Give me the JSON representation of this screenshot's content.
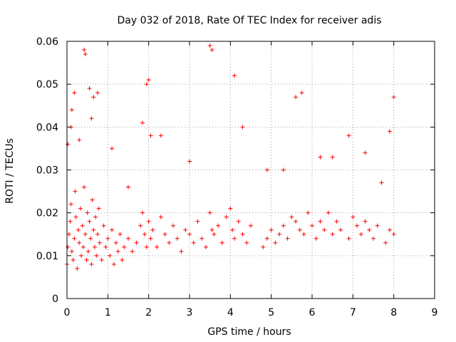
{
  "chart_data": {
    "type": "scatter",
    "title": "Day 032 of 2018, Rate Of TEC Index for receiver adis",
    "xlabel": "GPS time / hours",
    "ylabel": "ROTI / TECUs",
    "xlim": [
      0,
      9
    ],
    "ylim": [
      0,
      0.06
    ],
    "x_ticks": [
      "0",
      "1",
      "2",
      "3",
      "4",
      "5",
      "6",
      "7",
      "8",
      "9"
    ],
    "y_ticks": [
      "0",
      "0.01",
      "0.02",
      "0.03",
      "0.04",
      "0.05",
      "0.06"
    ],
    "grid": true,
    "marker": "+",
    "color": "#ff0000",
    "series": [
      {
        "name": "ROTI",
        "x": [
          0.0,
          0.02,
          0.05,
          0.08,
          0.1,
          0.12,
          0.15,
          0.18,
          0.2,
          0.22,
          0.25,
          0.28,
          0.3,
          0.33,
          0.35,
          0.38,
          0.4,
          0.42,
          0.45,
          0.48,
          0.5,
          0.52,
          0.55,
          0.58,
          0.6,
          0.62,
          0.65,
          0.68,
          0.7,
          0.72,
          0.75,
          0.78,
          0.8,
          0.85,
          0.9,
          0.95,
          1.0,
          1.05,
          1.1,
          1.15,
          1.2,
          1.25,
          1.3,
          1.35,
          1.4,
          1.5,
          1.6,
          1.7,
          1.8,
          1.85,
          1.9,
          1.95,
          2.0,
          2.05,
          2.1,
          2.2,
          2.3,
          2.4,
          2.5,
          2.6,
          2.7,
          2.8,
          2.9,
          3.0,
          3.1,
          3.2,
          3.3,
          3.4,
          3.5,
          3.55,
          3.6,
          3.7,
          3.8,
          3.9,
          4.0,
          4.05,
          4.1,
          4.2,
          4.3,
          4.4,
          4.5,
          4.8,
          4.9,
          5.0,
          5.1,
          5.2,
          5.3,
          5.4,
          5.5,
          5.6,
          5.7,
          5.8,
          5.9,
          6.0,
          6.1,
          6.2,
          6.3,
          6.4,
          6.5,
          6.6,
          6.7,
          6.9,
          7.0,
          7.1,
          7.2,
          7.3,
          7.4,
          7.5,
          7.6,
          7.8,
          7.9,
          8.0,
          0.42,
          0.45,
          0.18,
          0.12,
          0.75,
          1.95,
          2.0,
          3.5,
          3.55,
          4.1,
          1.85,
          0.02,
          0.1,
          0.55,
          0.65,
          2.05,
          5.6,
          5.75,
          6.5,
          7.9,
          8.0,
          0.3,
          0.6,
          1.1,
          2.3,
          4.3,
          6.9,
          7.3,
          1.5,
          3.0,
          4.9,
          5.3,
          6.2,
          7.7
        ],
        "y": [
          0.008,
          0.012,
          0.015,
          0.018,
          0.022,
          0.011,
          0.009,
          0.014,
          0.025,
          0.019,
          0.007,
          0.016,
          0.013,
          0.021,
          0.01,
          0.017,
          0.012,
          0.026,
          0.015,
          0.009,
          0.02,
          0.011,
          0.018,
          0.014,
          0.008,
          0.023,
          0.016,
          0.012,
          0.019,
          0.01,
          0.015,
          0.021,
          0.013,
          0.009,
          0.017,
          0.012,
          0.014,
          0.01,
          0.016,
          0.008,
          0.013,
          0.011,
          0.015,
          0.009,
          0.012,
          0.014,
          0.011,
          0.013,
          0.017,
          0.02,
          0.015,
          0.012,
          0.018,
          0.014,
          0.016,
          0.012,
          0.019,
          0.015,
          0.013,
          0.017,
          0.014,
          0.011,
          0.016,
          0.015,
          0.013,
          0.018,
          0.014,
          0.012,
          0.02,
          0.016,
          0.015,
          0.017,
          0.013,
          0.019,
          0.021,
          0.016,
          0.014,
          0.018,
          0.015,
          0.013,
          0.017,
          0.012,
          0.014,
          0.016,
          0.013,
          0.015,
          0.017,
          0.014,
          0.019,
          0.018,
          0.016,
          0.015,
          0.02,
          0.017,
          0.014,
          0.018,
          0.016,
          0.02,
          0.015,
          0.018,
          0.016,
          0.014,
          0.019,
          0.017,
          0.015,
          0.018,
          0.016,
          0.014,
          0.017,
          0.013,
          0.016,
          0.015,
          0.058,
          0.057,
          0.048,
          0.044,
          0.048,
          0.05,
          0.051,
          0.059,
          0.058,
          0.052,
          0.041,
          0.036,
          0.04,
          0.049,
          0.047,
          0.038,
          0.047,
          0.048,
          0.033,
          0.039,
          0.047,
          0.037,
          0.042,
          0.035,
          0.038,
          0.04,
          0.038,
          0.034,
          0.026,
          0.032,
          0.03,
          0.03,
          0.033,
          0.027
        ]
      }
    ]
  }
}
